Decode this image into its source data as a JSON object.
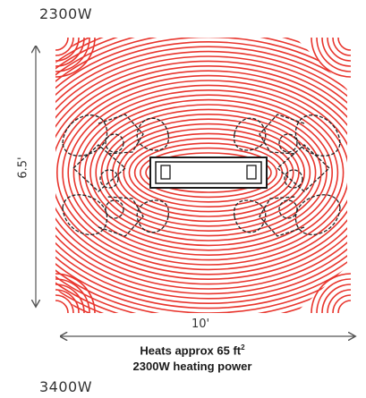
{
  "top_wattage": "2300W",
  "bottom_wattage": "3400W",
  "dimensions": {
    "height": "6.5'",
    "width": "10'"
  },
  "caption": {
    "line1": "Heats approx 65 ft",
    "line1_superscript": "2",
    "line2": "2300W heating power"
  },
  "colors": {
    "heat_red": "#e8352d",
    "outline": "#222222",
    "arrow": "#555555"
  },
  "icons": {
    "heater": "heater-unit-icon",
    "people": "seated-people-icon"
  }
}
